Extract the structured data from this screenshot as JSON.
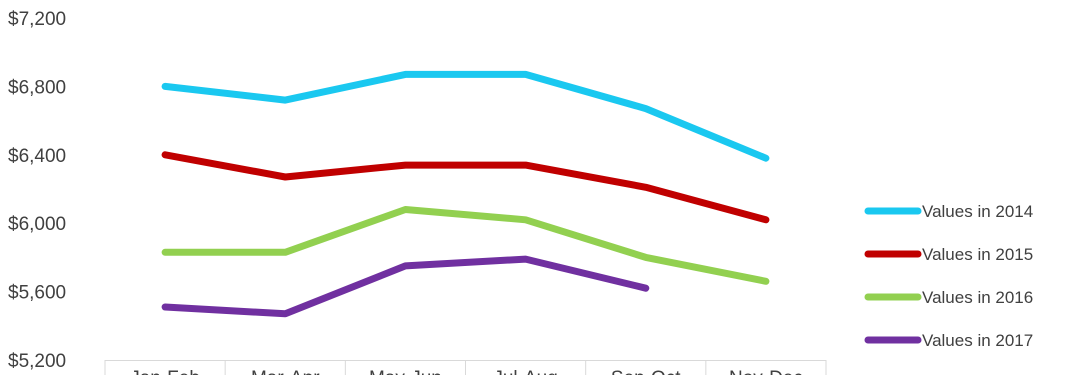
{
  "chart_data": {
    "type": "line",
    "categories": [
      "Jan-Feb",
      "Mar-Apr",
      "May-Jun",
      "Jul-Aug",
      "Sep-Oct",
      "Nov-Dec"
    ],
    "ylim": [
      5200,
      7200
    ],
    "yticks": [
      "$5,200",
      "$5,600",
      "$6,000",
      "$6,400",
      "$6,800",
      "$7,200"
    ],
    "ytick_values": [
      5200,
      5600,
      6000,
      6400,
      6800,
      7200
    ],
    "grid": false,
    "legend_position": "right",
    "series": [
      {
        "name": "Values in 2014",
        "color": "#1AC8F0",
        "values": [
          6800,
          6720,
          6870,
          6870,
          6670,
          6380
        ]
      },
      {
        "name": "Values in 2015",
        "color": "#C00000",
        "values": [
          6400,
          6270,
          6340,
          6340,
          6210,
          6020
        ]
      },
      {
        "name": "Values in 2016",
        "color": "#92D050",
        "values": [
          5830,
          5830,
          6080,
          6020,
          5800,
          5660
        ]
      },
      {
        "name": "Values in 2017",
        "color": "#7030A0",
        "values": [
          5510,
          5470,
          5750,
          5790,
          5620,
          null
        ]
      }
    ]
  }
}
